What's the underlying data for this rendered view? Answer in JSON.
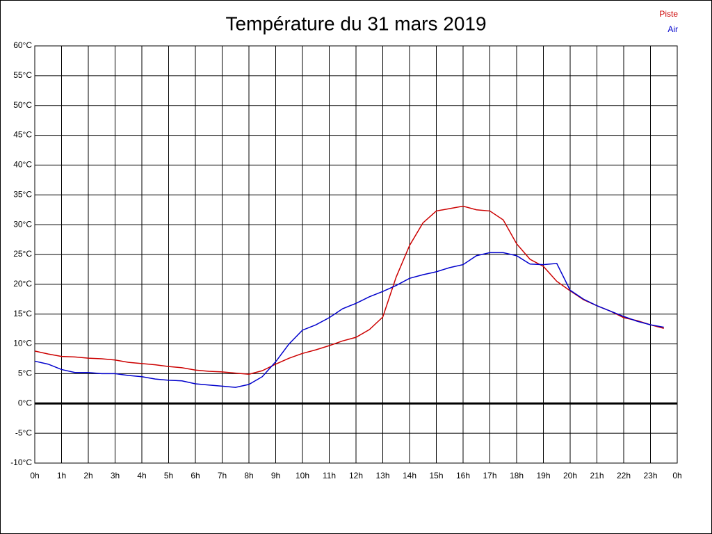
{
  "chart_data": {
    "type": "line",
    "title": "Température du 31 mars 2019",
    "x": [
      0,
      0.5,
      1,
      1.5,
      2,
      2.5,
      3,
      3.5,
      4,
      4.5,
      5,
      5.5,
      6,
      6.5,
      7,
      7.5,
      8,
      8.5,
      9,
      9.5,
      10,
      10.5,
      11,
      11.5,
      12,
      12.5,
      13,
      13.5,
      14,
      14.5,
      15,
      15.5,
      16,
      16.5,
      17,
      17.5,
      18,
      18.5,
      19,
      19.5,
      20,
      20.5,
      21,
      21.5,
      22,
      22.5,
      23,
      23.5
    ],
    "series": [
      {
        "name": "Piste",
        "color": "#cc0000",
        "values": [
          8.8,
          8.3,
          7.9,
          7.8,
          7.6,
          7.5,
          7.3,
          6.9,
          6.7,
          6.5,
          6.2,
          6.0,
          5.6,
          5.4,
          5.3,
          5.1,
          4.9,
          5.5,
          6.6,
          7.6,
          8.4,
          9.0,
          9.7,
          10.5,
          11.1,
          12.4,
          14.5,
          21.2,
          26.5,
          30.3,
          32.3,
          32.7,
          33.1,
          32.5,
          32.3,
          30.8,
          26.8,
          24.2,
          23.0,
          20.5,
          18.9,
          17.4,
          16.4,
          15.5,
          14.4,
          13.9,
          13.2,
          12.6
        ]
      },
      {
        "name": "Air",
        "color": "#0000cc",
        "values": [
          7.1,
          6.6,
          5.7,
          5.2,
          5.2,
          5.0,
          5.0,
          4.7,
          4.5,
          4.1,
          3.9,
          3.8,
          3.3,
          3.1,
          2.9,
          2.7,
          3.2,
          4.5,
          7.0,
          10.0,
          12.3,
          13.2,
          14.4,
          15.9,
          16.8,
          17.9,
          18.8,
          19.8,
          21.0,
          21.6,
          22.1,
          22.8,
          23.3,
          24.8,
          25.3,
          25.3,
          24.8,
          23.4,
          23.3,
          23.5,
          19.0,
          17.5,
          16.4,
          15.5,
          14.6,
          13.8,
          13.2,
          12.8
        ]
      }
    ],
    "xlim": [
      0,
      24
    ],
    "xticks": [
      {
        "value": 0,
        "label": "0h"
      },
      {
        "value": 1,
        "label": "1h"
      },
      {
        "value": 2,
        "label": "2h"
      },
      {
        "value": 3,
        "label": "3h"
      },
      {
        "value": 4,
        "label": "4h"
      },
      {
        "value": 5,
        "label": "5h"
      },
      {
        "value": 6,
        "label": "6h"
      },
      {
        "value": 7,
        "label": "7h"
      },
      {
        "value": 8,
        "label": "8h"
      },
      {
        "value": 9,
        "label": "9h"
      },
      {
        "value": 10,
        "label": "10h"
      },
      {
        "value": 11,
        "label": "11h"
      },
      {
        "value": 12,
        "label": "12h"
      },
      {
        "value": 13,
        "label": "13h"
      },
      {
        "value": 14,
        "label": "14h"
      },
      {
        "value": 15,
        "label": "15h"
      },
      {
        "value": 16,
        "label": "16h"
      },
      {
        "value": 17,
        "label": "17h"
      },
      {
        "value": 18,
        "label": "18h"
      },
      {
        "value": 19,
        "label": "19h"
      },
      {
        "value": 20,
        "label": "20h"
      },
      {
        "value": 21,
        "label": "21h"
      },
      {
        "value": 22,
        "label": "22h"
      },
      {
        "value": 23,
        "label": "23h"
      },
      {
        "value": 24,
        "label": "0h"
      }
    ],
    "ylim": [
      -10,
      60
    ],
    "yticks": [
      {
        "value": -10,
        "label": "-10°C"
      },
      {
        "value": -5,
        "label": "-5°C"
      },
      {
        "value": 0,
        "label": "0°C"
      },
      {
        "value": 5,
        "label": "5°C"
      },
      {
        "value": 10,
        "label": "10°C"
      },
      {
        "value": 15,
        "label": "15°C"
      },
      {
        "value": 20,
        "label": "20°C"
      },
      {
        "value": 25,
        "label": "25°C"
      },
      {
        "value": 30,
        "label": "30°C"
      },
      {
        "value": 35,
        "label": "35°C"
      },
      {
        "value": 40,
        "label": "40°C"
      },
      {
        "value": 45,
        "label": "45°C"
      },
      {
        "value": 50,
        "label": "50°C"
      },
      {
        "value": 55,
        "label": "55°C"
      },
      {
        "value": 60,
        "label": "60°C"
      }
    ],
    "grid": true,
    "legend": "top-right"
  }
}
